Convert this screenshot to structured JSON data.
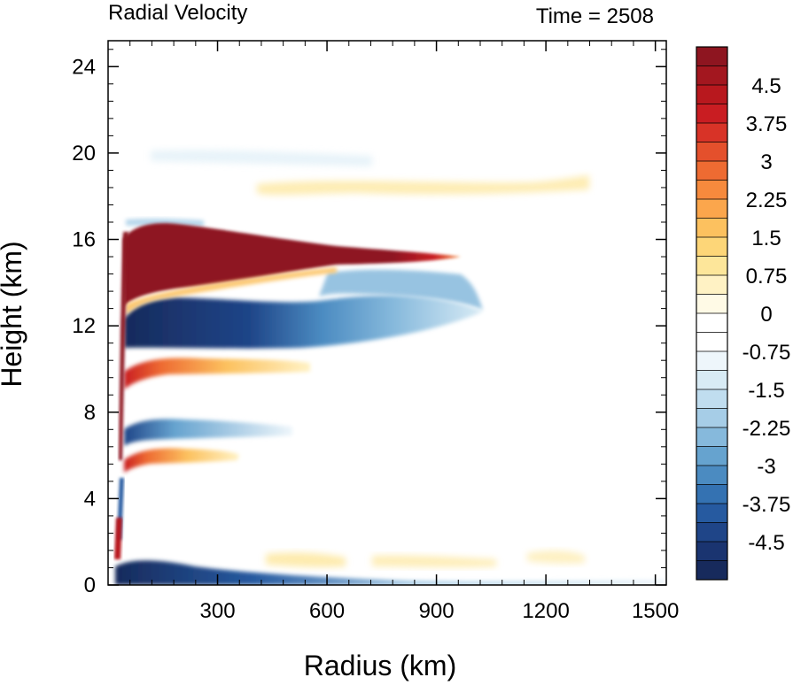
{
  "chart_data": {
    "type": "heatmap",
    "title_left": "Radial Velocity",
    "title_right": "Time = 2508",
    "xlabel": "Radius (km)",
    "ylabel": "Height (km)",
    "xlim": [
      0,
      1530
    ],
    "ylim": [
      0,
      25.2
    ],
    "x_ticks": [
      300,
      600,
      900,
      1200,
      1500
    ],
    "y_ticks": [
      0,
      4,
      8,
      12,
      16,
      20,
      24
    ],
    "x_tick_labels": [
      "300",
      "600",
      "900",
      "1200",
      "1500"
    ],
    "y_tick_labels": [
      "0",
      "4",
      "8",
      "12",
      "16",
      "20",
      "24"
    ],
    "colorbar": {
      "min": -5.25,
      "max": 5.25,
      "step": 0.375,
      "labels": [
        "4.5",
        "3.75",
        "3",
        "2.25",
        "1.5",
        "0.75",
        "0",
        "-0.75",
        "-1.5",
        "-2.25",
        "-3",
        "-3.75",
        "-4.5"
      ],
      "label_values": [
        4.5,
        3.75,
        3,
        2.25,
        1.5,
        0.75,
        0,
        -0.75,
        -1.5,
        -2.25,
        -3,
        -3.75,
        -4.5
      ],
      "colors_top_to_bottom": [
        "#8e1520",
        "#a3171f",
        "#b8181e",
        "#c91d22",
        "#d83327",
        "#e4502c",
        "#ee6b32",
        "#f68a3d",
        "#fba64c",
        "#fcc15f",
        "#fdd678",
        "#fde69a",
        "#fff2c4",
        "#fffae6",
        "#ffffff",
        "#ffffff",
        "#eef6fb",
        "#d8ebf5",
        "#c0ddef",
        "#a6cde7",
        "#86b9dc",
        "#66a3cf",
        "#4b8bc1",
        "#3472b2",
        "#265aa0",
        "#1f4588",
        "#1a3470",
        "#172a5c"
      ]
    },
    "features": [
      {
        "name": "upper outflow jet",
        "sign": "positive",
        "r_range": [
          40,
          1000
        ],
        "z_range": [
          13.5,
          16.8
        ],
        "peak": 5.0
      },
      {
        "name": "upper inflow layer",
        "sign": "negative",
        "r_range": [
          40,
          1050
        ],
        "z_range": [
          11,
          14.5
        ],
        "peak": -5.0
      },
      {
        "name": "outflow band near 10 km",
        "sign": "positive",
        "r_range": [
          40,
          550
        ],
        "z_range": [
          9.5,
          10.6
        ],
        "peak": 2.5
      },
      {
        "name": "inflow band near 7.4 km",
        "sign": "negative",
        "r_range": [
          40,
          400
        ],
        "z_range": [
          6.9,
          7.9
        ],
        "peak": -3.5
      },
      {
        "name": "outflow band near 6.2 km",
        "sign": "positive",
        "r_range": [
          40,
          400
        ],
        "z_range": [
          5.7,
          6.6
        ],
        "peak": 2.0
      },
      {
        "name": "weak outflow near 18 km",
        "sign": "positive",
        "r_range": [
          280,
          1350
        ],
        "z_range": [
          17.5,
          19
        ],
        "peak": 0.7
      },
      {
        "name": "boundary layer inflow",
        "sign": "negative",
        "r_range": [
          30,
          1500
        ],
        "z_range": [
          0,
          1.2
        ],
        "peak": -5.0
      },
      {
        "name": "low-level eyewall outflow",
        "sign": "positive",
        "r_range": [
          30,
          50
        ],
        "z_range": [
          1.5,
          3.2
        ],
        "peak": 4.0
      }
    ]
  }
}
